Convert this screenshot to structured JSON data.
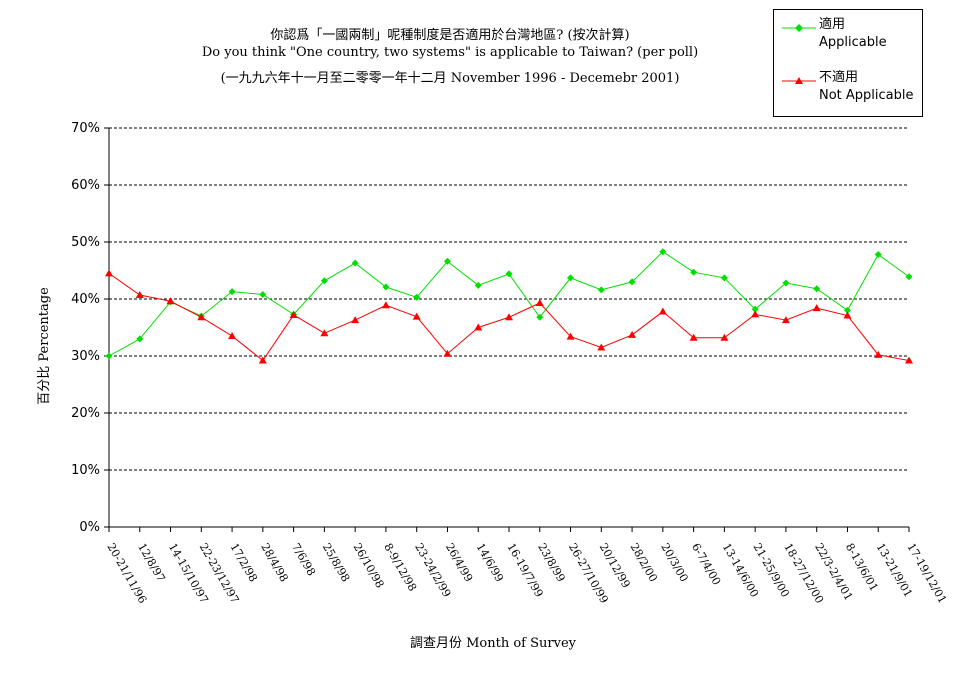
{
  "chart_data": {
    "type": "line",
    "title": "你認爲「一國兩制」呢種制度是否適用於台灣地區? (按次計算)",
    "subtitle": "Do you think \"One country, two systems\" is applicable to Taiwan? (per poll)",
    "subtitle2": "(一九九六年十一月至二零零一年十二月 November 1996 - Decemebr 2001)",
    "xlabel": "調查月份 Month of Survey",
    "ylabel": "百分比 Percentage",
    "ylim": [
      0,
      70
    ],
    "yticks": [
      "0%",
      "10%",
      "20%",
      "30%",
      "40%",
      "50%",
      "60%",
      "70%"
    ],
    "grid": true,
    "legend_position": "top-right",
    "categories": [
      "20-21/11/96",
      "12/8/97",
      "14-15/10/97",
      "22-23/12/97",
      "17/2/98",
      "28/4/98",
      "7/6/98",
      "25/8/98",
      "26/10/98",
      "8-9/12/98",
      "23-24/2/99",
      "26/4/99",
      "14/6/99",
      "16-19/7/99",
      "23/8/99",
      "26-27/10/99",
      "20/12/99",
      "28/2/00",
      "20/3/00",
      "6-7/4/00",
      "13-14/6/00",
      "21-25/9/00",
      "18-27/12/00",
      "22/3-2/4/01",
      "8-13/6/01",
      "13-21/9/01",
      "17-19/12/01"
    ],
    "series": [
      {
        "name": "適用",
        "name_en": "Applicable",
        "color": "#00e000",
        "marker": "diamond",
        "values": [
          30.0,
          33.0,
          39.5,
          37.0,
          41.3,
          40.8,
          37.3,
          43.2,
          46.3,
          42.1,
          40.3,
          46.6,
          42.4,
          44.4,
          36.8,
          43.7,
          41.6,
          43.0,
          48.3,
          44.7,
          43.7,
          38.2,
          42.8,
          41.8,
          38.0,
          47.8,
          43.9
        ]
      },
      {
        "name": "不適用",
        "name_en": "Not Applicable",
        "color": "#ff0000",
        "marker": "triangle",
        "values": [
          44.5,
          40.7,
          39.6,
          36.8,
          33.5,
          29.2,
          37.2,
          34.0,
          36.3,
          38.9,
          36.9,
          30.4,
          35.0,
          36.8,
          39.3,
          33.4,
          31.5,
          33.7,
          37.8,
          33.2,
          33.2,
          37.3,
          36.3,
          38.4,
          37.1,
          30.2,
          29.2
        ]
      }
    ]
  }
}
